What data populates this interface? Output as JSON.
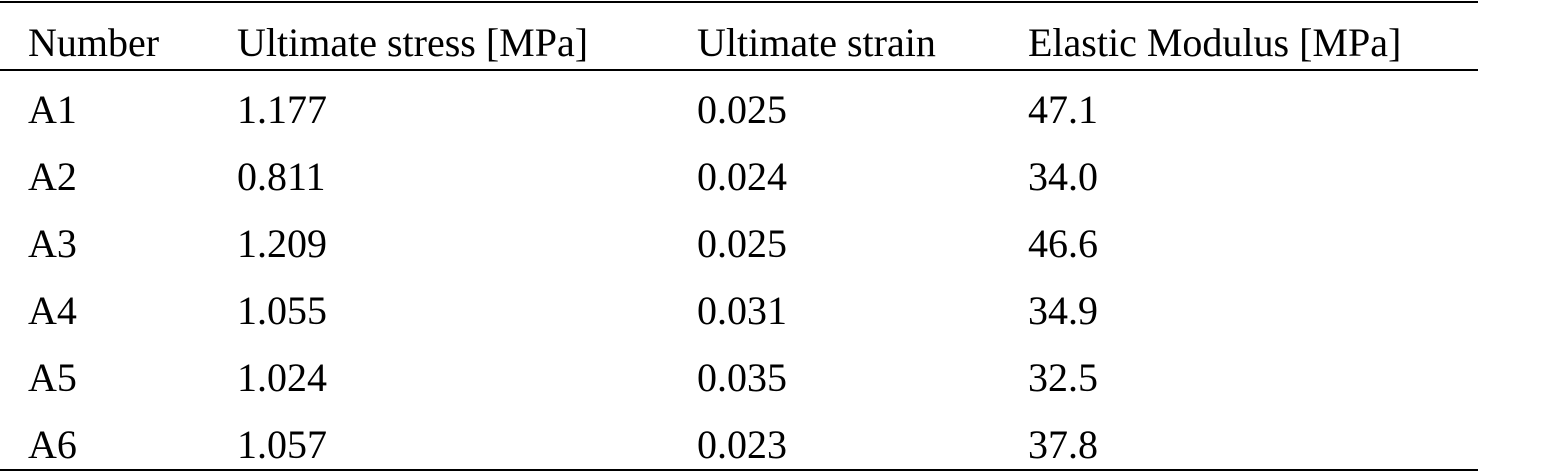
{
  "table": {
    "header": [
      "Number",
      "Ultimate stress [MPa]",
      "Ultimate strain",
      "Elastic Modulus [MPa]"
    ],
    "rows": [
      [
        "A1",
        "1.177",
        "0.025",
        "47.1"
      ],
      [
        "A2",
        "0.811",
        "0.024",
        "34.0"
      ],
      [
        "A3",
        "1.209",
        "0.025",
        "46.6"
      ],
      [
        "A4",
        "1.055",
        "0.031",
        "34.9"
      ],
      [
        "A5",
        "1.024",
        "0.035",
        "32.5"
      ],
      [
        "A6",
        "1.057",
        "0.023",
        "37.8"
      ]
    ]
  }
}
